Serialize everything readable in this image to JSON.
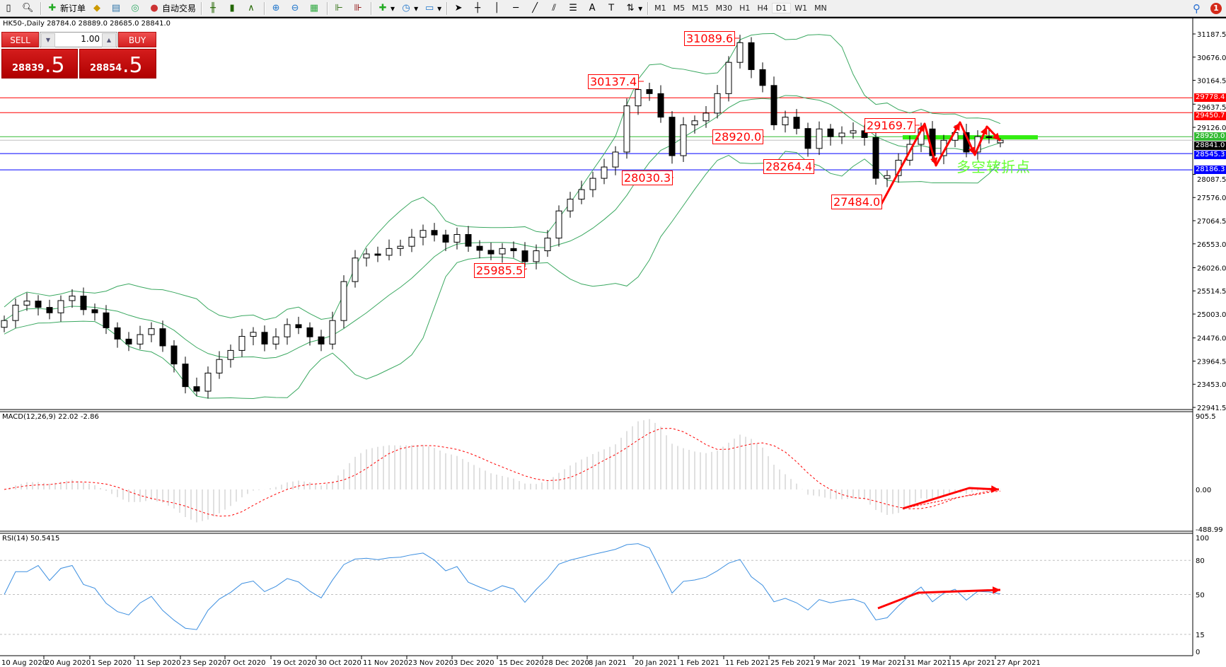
{
  "toolbar": {
    "new_order": "新订单",
    "auto_trading": "自动交易",
    "timeframes": [
      "M1",
      "M5",
      "M15",
      "M30",
      "H1",
      "H4",
      "D1",
      "W1",
      "MN"
    ],
    "active_timeframe": "D1",
    "notification_count": "1"
  },
  "chart": {
    "title": "HK50-,Daily  28784.0 28889.0 28685.0 28841.0",
    "symbol": "HK50-",
    "period": "Daily",
    "last_bar": {
      "open": 28784.0,
      "high": 28889.0,
      "low": 28685.0,
      "close": 28841.0
    }
  },
  "trade_panel": {
    "sell_label": "SELL",
    "buy_label": "BUY",
    "lot": "1.00",
    "sell_price_main": "28839",
    "sell_price_big": ".5",
    "buy_price_main": "28854",
    "buy_price_big": ".5"
  },
  "annotations": {
    "labels": [
      "31089.6",
      "30137.4",
      "29169.7",
      "28920.0",
      "28264.4",
      "28030.3",
      "27484.0",
      "25985.5"
    ],
    "note": "多空转折点"
  },
  "colors": {
    "bull": "#ffffff",
    "bear": "#000000",
    "bands": "#3aa860",
    "macd_hist": "#c0c0c0",
    "macd_signal": "#ff0000",
    "rsi": "#3d8fe0",
    "arrow": "#ff0000",
    "highlight": "#33ee11"
  },
  "chart_data": {
    "type": "candlestick",
    "price_axis": {
      "min": 22941.5,
      "max": 31187.5,
      "ticks": [
        "31187.5",
        "30676.0",
        "30164.5",
        "29637.5",
        "29126.0",
        "28087.5",
        "27576.0",
        "27064.5",
        "26553.0",
        "26026.0",
        "25514.5",
        "25003.0",
        "24476.0",
        "23964.5",
        "23453.0",
        "22941.5"
      ]
    },
    "x_ticks": [
      "10 Aug 2020",
      "20 Aug 2020",
      "1 Sep 2020",
      "11 Sep 2020",
      "23 Sep 2020",
      "7 Oct 2020",
      "19 Oct 2020",
      "30 Oct 2020",
      "11 Nov 2020",
      "23 Nov 2020",
      "3 Dec 2020",
      "15 Dec 2020",
      "28 Dec 2020",
      "8 Jan 2021",
      "20 Jan 2021",
      "1 Feb 2021",
      "11 Feb 2021",
      "25 Feb 2021",
      "9 Mar 2021",
      "19 Mar 2021",
      "31 Mar 2021",
      "15 Apr 2021",
      "27 Apr 2021"
    ],
    "close": [
      24860,
      25200,
      25290,
      25150,
      25030,
      25300,
      25400,
      25100,
      25030,
      24700,
      24450,
      24340,
      24550,
      24680,
      24300,
      23900,
      23400,
      23300,
      23700,
      24000,
      24200,
      24510,
      24600,
      24340,
      24500,
      24770,
      24700,
      24500,
      24340,
      24860,
      25720,
      26240,
      26330,
      26300,
      26450,
      26500,
      26700,
      26850,
      26750,
      26590,
      26760,
      26500,
      26410,
      26330,
      26450,
      26400,
      26160,
      26400,
      26680,
      27280,
      27540,
      27750,
      28000,
      28250,
      28580,
      29600,
      29960,
      29870,
      29350,
      28500,
      29180,
      29270,
      29440,
      29870,
      30560,
      30995,
      30400,
      30050,
      29180,
      29350,
      29100,
      28660,
      29090,
      28920,
      29000,
      29050,
      28900,
      28000,
      28060,
      28400,
      28750,
      29090,
      28500,
      28840,
      29010,
      28580,
      28920,
      28900,
      28841
    ],
    "horizontal_lines": [
      {
        "price": 29778.4,
        "label": "29778.4",
        "color": "#ff0000"
      },
      {
        "price": 29450.7,
        "label": "29450.7",
        "color": "#ff0000"
      },
      {
        "price": 28920.0,
        "label": "28920.0",
        "color": "#33bb33"
      },
      {
        "price": 28841.0,
        "label": "28841.0",
        "color": "#000000"
      },
      {
        "price": 28545.3,
        "label": "28545.3",
        "color": "#0000ff"
      },
      {
        "price": 28186.3,
        "label": "28186.3",
        "color": "#0000ff"
      }
    ],
    "bollinger": {
      "period": 20,
      "deviation": 2
    },
    "macd": {
      "label": "MACD(12,26,9) 22.02 -2.86",
      "fast": 12,
      "slow": 26,
      "signal": 9,
      "min": -488.99,
      "max": 905.5,
      "ticks": [
        "905.5",
        "0.00",
        "-488.99"
      ]
    },
    "rsi": {
      "label": "RSI(14) 50.5415",
      "period": 14,
      "levels": [
        80,
        50,
        15
      ],
      "ticks": [
        "100",
        "80",
        "50",
        "15",
        "0"
      ]
    }
  }
}
